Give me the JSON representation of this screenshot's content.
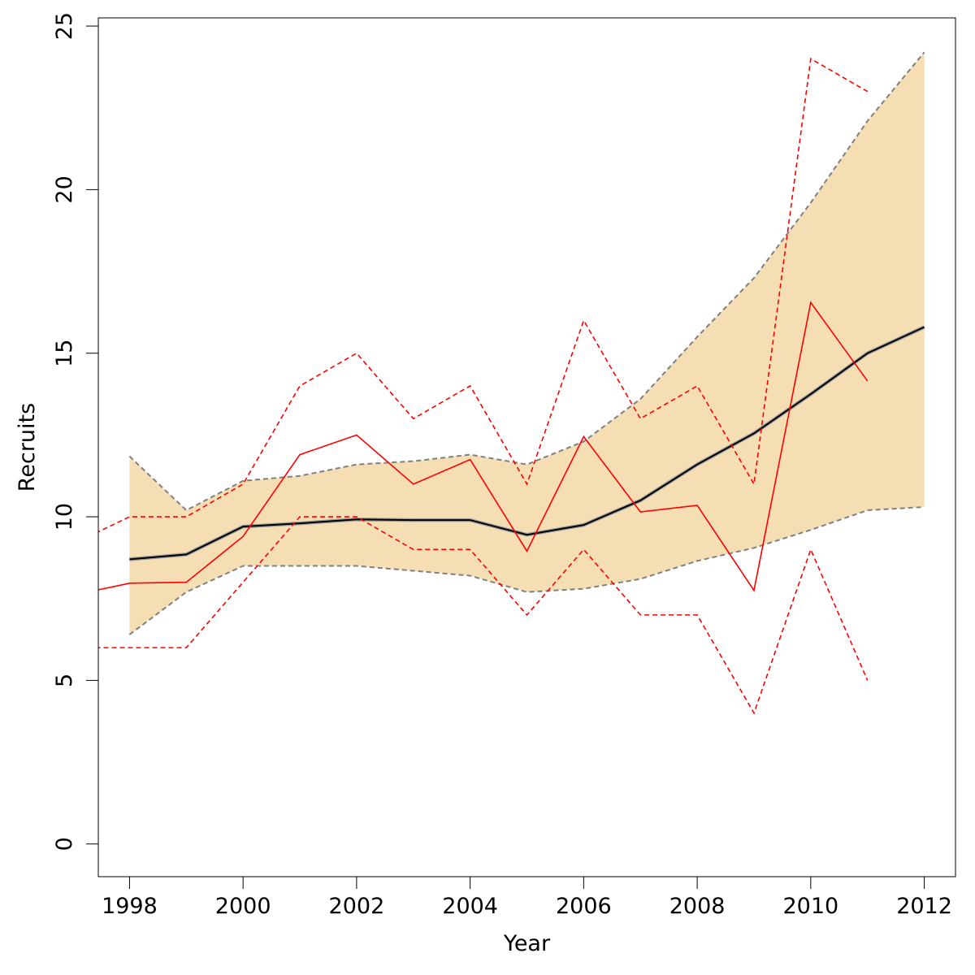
{
  "chart_data": {
    "type": "line",
    "title": "",
    "xlabel": "Year",
    "ylabel": "Recruits",
    "xlim": [
      1997.45,
      2012.55
    ],
    "ylim": [
      -1,
      25.25
    ],
    "x_ticks": [
      1998,
      2000,
      2002,
      2004,
      2006,
      2008,
      2010,
      2012
    ],
    "y_ticks": [
      0,
      5,
      10,
      15,
      20,
      25
    ],
    "grid": false,
    "legend": "none",
    "colors": {
      "band": "#f5deb3",
      "band_edge": "#808080",
      "median": "#000000",
      "observed": "#ff0000",
      "axis": "#000000"
    },
    "band": {
      "x": [
        1998,
        1999,
        2000,
        2001,
        2002,
        2003,
        2004,
        2005,
        2006,
        2007,
        2008,
        2009,
        2010,
        2011,
        2012
      ],
      "upper": [
        11.85,
        10.2,
        11.1,
        11.25,
        11.6,
        11.7,
        11.9,
        11.6,
        12.3,
        13.6,
        15.5,
        17.3,
        19.6,
        22.1,
        24.2
      ],
      "lower": [
        6.4,
        7.7,
        8.5,
        8.5,
        8.5,
        8.35,
        8.2,
        7.7,
        7.8,
        8.1,
        8.65,
        9.05,
        9.6,
        10.2,
        10.3
      ]
    },
    "series": [
      {
        "x": [
          1998,
          1999,
          2000,
          2001,
          2002,
          2003,
          2004,
          2005,
          2006,
          2007,
          2008,
          2009,
          2010,
          2011,
          2012
        ],
        "values": [
          8.7,
          8.85,
          9.7,
          9.8,
          9.92,
          9.9,
          9.9,
          9.45,
          9.75,
          10.5,
          11.6,
          12.55,
          13.75,
          15.0,
          15.8
        ],
        "style": "solid",
        "color": "#000000"
      },
      {
        "x": [
          1997.4,
          1998,
          1999,
          2000,
          2001,
          2002,
          2003,
          2004,
          2005,
          2006,
          2007,
          2008,
          2009,
          2010,
          2011
        ],
        "values": [
          7.75,
          7.97,
          8.0,
          9.4,
          11.9,
          12.5,
          11.0,
          11.75,
          8.95,
          12.45,
          10.15,
          10.35,
          7.75,
          16.55,
          14.15
        ],
        "style": "solid",
        "color": "#ff0000"
      },
      {
        "x": [
          1997.4,
          1998,
          1999,
          2000,
          2001,
          2002,
          2003,
          2004,
          2005,
          2006,
          2007,
          2008,
          2009,
          2010,
          2011
        ],
        "values": [
          9.5,
          10,
          10,
          11,
          14,
          15,
          13,
          14,
          11,
          16,
          13,
          14,
          11,
          24,
          23
        ],
        "style": "dashed",
        "color": "#ff0000"
      },
      {
        "x": [
          1997.4,
          1998,
          1999,
          2000,
          2001,
          2002,
          2003,
          2004,
          2005,
          2006,
          2007,
          2008,
          2009,
          2010,
          2011
        ],
        "values": [
          6,
          6,
          6,
          8,
          10,
          10,
          9,
          9,
          7,
          9,
          7,
          7,
          4,
          9,
          5
        ],
        "style": "dashed",
        "color": "#ff0000"
      }
    ]
  }
}
